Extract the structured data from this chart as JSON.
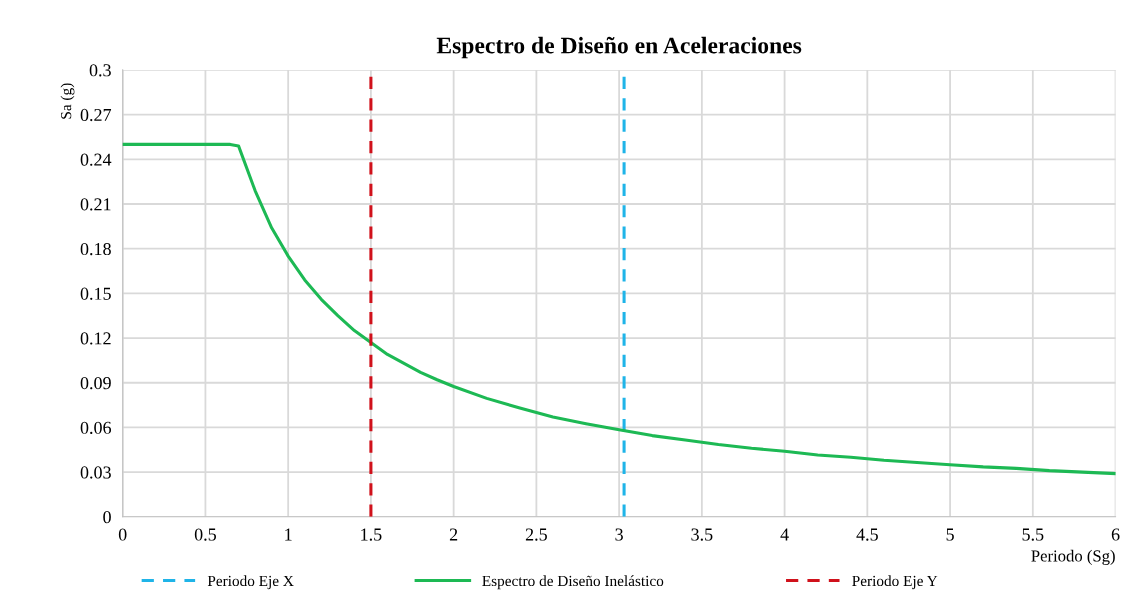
{
  "chart_data": {
    "type": "line",
    "title": "Espectro de Diseño en Aceleraciones",
    "xlabel": "Periodo (Sg)",
    "ylabel": "Sa (g)",
    "xlim": [
      0,
      6
    ],
    "ylim": [
      0,
      0.3
    ],
    "xticks": [
      0,
      0.5,
      1,
      1.5,
      2,
      2.5,
      3,
      3.5,
      4,
      4.5,
      5,
      5.5,
      6
    ],
    "yticks": [
      0,
      0.03,
      0.06,
      0.09,
      0.12,
      0.15,
      0.18,
      0.21,
      0.24,
      0.27,
      0.3
    ],
    "grid": true,
    "legend": "bottom",
    "marker": "none",
    "series": [
      {
        "name": "Periodo Eje X",
        "color": "#1fb4e8",
        "line_style": "dashed",
        "x": [
          3.03,
          3.03
        ],
        "values": [
          0,
          0.3
        ]
      },
      {
        "name": "Espectro de Diseño Inelástico",
        "color": "#1db954",
        "line_style": "solid",
        "x": [
          0,
          0.6,
          0.65,
          0.7,
          0.8,
          0.9,
          1.0,
          1.1,
          1.2,
          1.3,
          1.4,
          1.5,
          1.6,
          1.7,
          1.8,
          1.9,
          2.0,
          2.2,
          2.4,
          2.6,
          2.8,
          3.0,
          3.2,
          3.4,
          3.6,
          3.8,
          4.0,
          4.2,
          4.4,
          4.6,
          4.8,
          5.0,
          5.2,
          5.4,
          5.6,
          5.8,
          6.0
        ],
        "values": [
          0.25,
          0.25,
          0.25,
          0.249,
          0.219,
          0.194,
          0.175,
          0.159,
          0.146,
          0.135,
          0.125,
          0.117,
          0.109,
          0.103,
          0.097,
          0.092,
          0.0875,
          0.0795,
          0.073,
          0.067,
          0.0625,
          0.0585,
          0.0545,
          0.0515,
          0.0485,
          0.046,
          0.044,
          0.0415,
          0.04,
          0.038,
          0.0365,
          0.035,
          0.0335,
          0.0325,
          0.031,
          0.03,
          0.029
        ]
      },
      {
        "name": "Periodo Eje Y",
        "color": "#d0111b",
        "line_style": "dashed",
        "x": [
          1.5,
          1.5
        ],
        "values": [
          0,
          0.3
        ]
      }
    ]
  }
}
